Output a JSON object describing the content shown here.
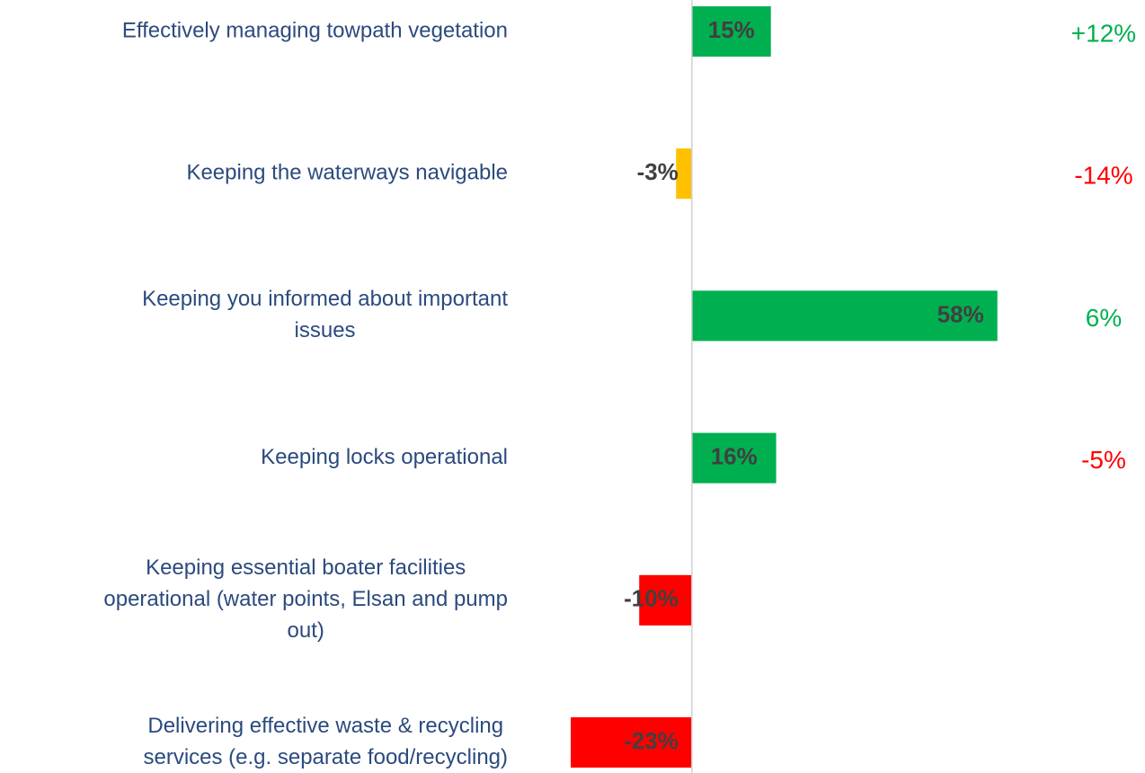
{
  "chart_data": {
    "type": "barh",
    "categories": [
      [
        "Effectively managing towpath vegetation"
      ],
      [
        "Keeping the waterways navigable"
      ],
      [
        "Keeping you informed about important",
        "issues"
      ],
      [
        "Keeping locks operational"
      ],
      [
        "Keeping essential boater facilities",
        "operational (water points, Elsan and pump",
        "out)"
      ],
      [
        "Delivering effective waste & recycling",
        "services (e.g. separate food/recycling)"
      ]
    ],
    "values": [
      15,
      -3,
      58,
      16,
      -10,
      -23
    ],
    "value_labels": [
      "15%",
      "-3%",
      "58%",
      "16%",
      "-10%",
      "-23%"
    ],
    "colors": [
      "#00b050",
      "#ffc000",
      "#00b050",
      "#00b050",
      "#ff0000",
      "#ff0000"
    ],
    "xlim": [
      -30,
      85
    ],
    "annotations": [
      {
        "text": "+12%",
        "color": "#00b050"
      },
      {
        "text": "-14%",
        "color": "#ff0000"
      },
      {
        "text": "6%",
        "color": "#00b050"
      },
      {
        "text": "-5%",
        "color": "#ff0000"
      }
    ]
  }
}
